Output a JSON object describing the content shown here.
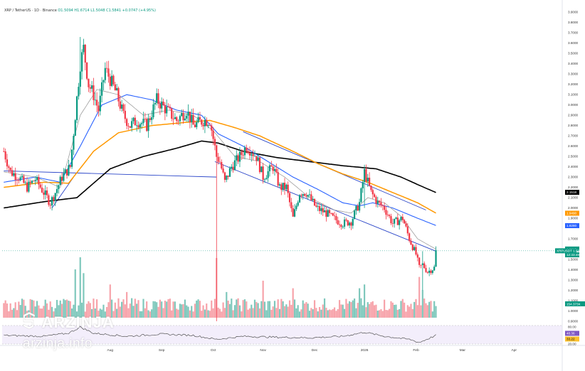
{
  "header": {
    "symbol": "XRP / TetherUS · 1D · Binance",
    "ohlc": "O1.5094  H1.6714  L1.5048  C1.5841  +0.0747 (+4.95%)"
  },
  "watermark": {
    "brand": "ARZINJA",
    "site": "arzinja.info",
    "logo": "arzinja-logo-icon"
  },
  "colors": {
    "up": "#089981",
    "down": "#f23645",
    "ema_fast": "#2962ff",
    "ema_mid": "#ff9800",
    "ema_slow": "#000000",
    "ma_gray": "#9e9e9e",
    "channel": "#2a45c8",
    "vol_up": "#7fc8bc",
    "vol_down": "#f7a3aa",
    "rsi": "#555555"
  },
  "chart_data": {
    "type": "candlestick",
    "symbol": "XRPUSDT",
    "x_tick_labels": [
      "Aug",
      "Sep",
      "Oct",
      "Nov",
      "Dec",
      "2026",
      "Feb",
      "Mar",
      "Apr"
    ],
    "x_tick_days": [
      0,
      31,
      62,
      92,
      123,
      153,
      184,
      212,
      243
    ],
    "y_ticks": [
      "3.9000",
      "3.8000",
      "3.7000",
      "3.6000",
      "3.5000",
      "3.4000",
      "3.3000",
      "3.2000",
      "3.1000",
      "3.0000",
      "2.9000",
      "2.8000",
      "2.7000",
      "2.6000",
      "2.5000",
      "2.4000",
      "2.3000",
      "2.2000",
      "2.1000",
      "2.0000",
      "1.9000",
      "1.7000",
      "1.5000",
      "1.4000",
      "1.3000",
      "1.2000",
      "1.1000",
      "1.0000",
      "0.9000"
    ],
    "ylim": [
      0.9,
      3.95
    ],
    "last_close": 1.5841,
    "price_labels": [
      {
        "text": "2.1518",
        "value": 2.1518,
        "color": "#000000"
      },
      {
        "text": "1.9490",
        "value": 1.949,
        "color": "#ff9800"
      },
      {
        "text": "1.8280",
        "value": 1.828,
        "color": "#2962ff"
      },
      {
        "text": "1.6013",
        "value": 1.6013,
        "color": "#089981"
      },
      {
        "text": "XRPUSDT  1.5841",
        "value": 1.5841,
        "color": "#089981"
      },
      {
        "text": "12:33:49",
        "value": 1.545,
        "color": "#089981"
      }
    ],
    "volume_label": "154.373K",
    "rsi_ticks": [
      "80.00",
      "20.00"
    ],
    "rsi_labels": [
      "48.36",
      "33.22"
    ],
    "price_anchors": [
      [
        -64,
        2.55
      ],
      [
        -60,
        2.35
      ],
      [
        -55,
        2.3
      ],
      [
        -50,
        2.2
      ],
      [
        -45,
        2.28
      ],
      [
        -40,
        2.15
      ],
      [
        -36,
        2.05
      ],
      [
        -33,
        2.15
      ],
      [
        -29,
        2.3
      ],
      [
        -24,
        2.4
      ],
      [
        -21,
        2.9
      ],
      [
        -18,
        3.4
      ],
      [
        -16,
        3.55
      ],
      [
        -13,
        3.2
      ],
      [
        -10,
        3.1
      ],
      [
        -7,
        2.95
      ],
      [
        -3,
        3.35
      ],
      [
        0,
        3.25
      ],
      [
        4,
        3.1
      ],
      [
        8,
        2.9
      ],
      [
        12,
        2.8
      ],
      [
        16,
        2.85
      ],
      [
        22,
        2.8
      ],
      [
        28,
        3.05
      ],
      [
        34,
        2.95
      ],
      [
        40,
        2.85
      ],
      [
        46,
        2.95
      ],
      [
        50,
        2.8
      ],
      [
        56,
        2.85
      ],
      [
        60,
        2.85
      ],
      [
        64,
        2.5
      ],
      [
        66,
        2.45
      ],
      [
        69,
        2.25
      ],
      [
        73,
        2.4
      ],
      [
        78,
        2.5
      ],
      [
        82,
        2.6
      ],
      [
        88,
        2.5
      ],
      [
        92,
        2.3
      ],
      [
        98,
        2.4
      ],
      [
        102,
        2.2
      ],
      [
        106,
        2.2
      ],
      [
        110,
        1.9
      ],
      [
        114,
        2.15
      ],
      [
        118,
        2.15
      ],
      [
        124,
        2.0
      ],
      [
        130,
        1.95
      ],
      [
        134,
        1.9
      ],
      [
        140,
        1.85
      ],
      [
        145,
        1.87
      ],
      [
        150,
        2.05
      ],
      [
        153,
        2.35
      ],
      [
        157,
        2.15
      ],
      [
        161,
        2.05
      ],
      [
        165,
        2.0
      ],
      [
        170,
        1.85
      ],
      [
        176,
        1.9
      ],
      [
        180,
        1.7
      ],
      [
        184,
        1.55
      ],
      [
        186,
        1.42
      ],
      [
        188,
        1.45
      ],
      [
        191,
        1.38
      ],
      [
        195,
        1.42
      ],
      [
        196,
        1.58
      ]
    ],
    "spikes": [
      {
        "day": -18,
        "high": 3.66,
        "low": 3.1
      },
      {
        "day": 64,
        "high": 2.62,
        "low": 0.9
      },
      {
        "day": 153,
        "high": 2.42,
        "low": 2.0
      },
      {
        "day": 188,
        "high": 1.58,
        "low": 1.2
      }
    ],
    "moving_averages": [
      {
        "name": "ema_slow",
        "color": "#000000",
        "points": [
          [
            -64,
            2.0
          ],
          [
            -40,
            2.06
          ],
          [
            -20,
            2.1
          ],
          [
            0,
            2.38
          ],
          [
            20,
            2.5
          ],
          [
            40,
            2.58
          ],
          [
            55,
            2.65
          ],
          [
            65,
            2.63
          ],
          [
            80,
            2.55
          ],
          [
            100,
            2.49
          ],
          [
            120,
            2.45
          ],
          [
            140,
            2.41
          ],
          [
            160,
            2.38
          ],
          [
            175,
            2.3
          ],
          [
            186,
            2.22
          ],
          [
            196,
            2.15
          ]
        ]
      },
      {
        "name": "ema_mid",
        "color": "#ff9800",
        "points": [
          [
            -64,
            2.2
          ],
          [
            -40,
            2.25
          ],
          [
            -25,
            2.24
          ],
          [
            -10,
            2.55
          ],
          [
            5,
            2.73
          ],
          [
            25,
            2.8
          ],
          [
            45,
            2.83
          ],
          [
            60,
            2.85
          ],
          [
            75,
            2.78
          ],
          [
            90,
            2.7
          ],
          [
            110,
            2.55
          ],
          [
            125,
            2.43
          ],
          [
            140,
            2.33
          ],
          [
            155,
            2.25
          ],
          [
            170,
            2.15
          ],
          [
            185,
            2.05
          ],
          [
            196,
            1.95
          ]
        ]
      },
      {
        "name": "ema_fast",
        "color": "#2962ff",
        "points": [
          [
            -64,
            2.25
          ],
          [
            -45,
            2.3
          ],
          [
            -30,
            2.25
          ],
          [
            -18,
            2.6
          ],
          [
            -5,
            3.0
          ],
          [
            10,
            3.1
          ],
          [
            25,
            3.05
          ],
          [
            40,
            2.95
          ],
          [
            55,
            2.9
          ],
          [
            65,
            2.72
          ],
          [
            80,
            2.6
          ],
          [
            95,
            2.45
          ],
          [
            110,
            2.3
          ],
          [
            125,
            2.18
          ],
          [
            140,
            2.05
          ],
          [
            150,
            2.02
          ],
          [
            158,
            2.05
          ],
          [
            170,
            2.0
          ],
          [
            185,
            1.9
          ],
          [
            196,
            1.83
          ]
        ]
      },
      {
        "name": "ma_gray",
        "color": "#9e9e9e",
        "points": [
          [
            -64,
            2.35
          ],
          [
            -45,
            2.3
          ],
          [
            -30,
            2.2
          ],
          [
            -18,
            2.9
          ],
          [
            -8,
            3.15
          ],
          [
            5,
            3.1
          ],
          [
            20,
            2.9
          ],
          [
            35,
            2.95
          ],
          [
            50,
            2.9
          ],
          [
            62,
            2.75
          ],
          [
            75,
            2.5
          ],
          [
            90,
            2.45
          ],
          [
            105,
            2.3
          ],
          [
            120,
            2.1
          ],
          [
            135,
            1.98
          ],
          [
            145,
            1.95
          ],
          [
            155,
            2.1
          ],
          [
            165,
            2.05
          ],
          [
            175,
            1.92
          ],
          [
            185,
            1.7
          ],
          [
            196,
            1.6
          ]
        ]
      }
    ],
    "trend_lines": [
      {
        "from": [
          -64,
          2.36
        ],
        "to": [
          64,
          2.3
        ]
      },
      {
        "from": [
          -35,
          2.0
        ],
        "to": [
          -22,
          2.3
        ]
      },
      {
        "from": [
          63,
          2.45
        ],
        "to": [
          196,
          1.58
        ]
      },
      {
        "from": [
          80,
          2.74
        ],
        "to": [
          190,
          1.98
        ]
      }
    ],
    "volume": {
      "base": 25,
      "spikes": [
        [
          -18,
          160
        ],
        [
          -21,
          120
        ],
        [
          -16,
          110
        ],
        [
          0,
          80
        ],
        [
          10,
          60
        ],
        [
          64,
          150
        ],
        [
          70,
          60
        ],
        [
          92,
          90
        ],
        [
          110,
          70
        ],
        [
          150,
          70
        ],
        [
          153,
          80
        ],
        [
          186,
          100
        ],
        [
          188,
          65
        ]
      ]
    },
    "rsi": {
      "range": [
        20,
        80
      ],
      "points": [
        [
          -64,
          48
        ],
        [
          -40,
          45
        ],
        [
          -25,
          55
        ],
        [
          -18,
          75
        ],
        [
          -10,
          55
        ],
        [
          10,
          45
        ],
        [
          30,
          52
        ],
        [
          50,
          48
        ],
        [
          64,
          35
        ],
        [
          80,
          45
        ],
        [
          100,
          42
        ],
        [
          120,
          40
        ],
        [
          140,
          45
        ],
        [
          153,
          58
        ],
        [
          165,
          45
        ],
        [
          180,
          35
        ],
        [
          186,
          25
        ],
        [
          196,
          48
        ]
      ]
    }
  }
}
